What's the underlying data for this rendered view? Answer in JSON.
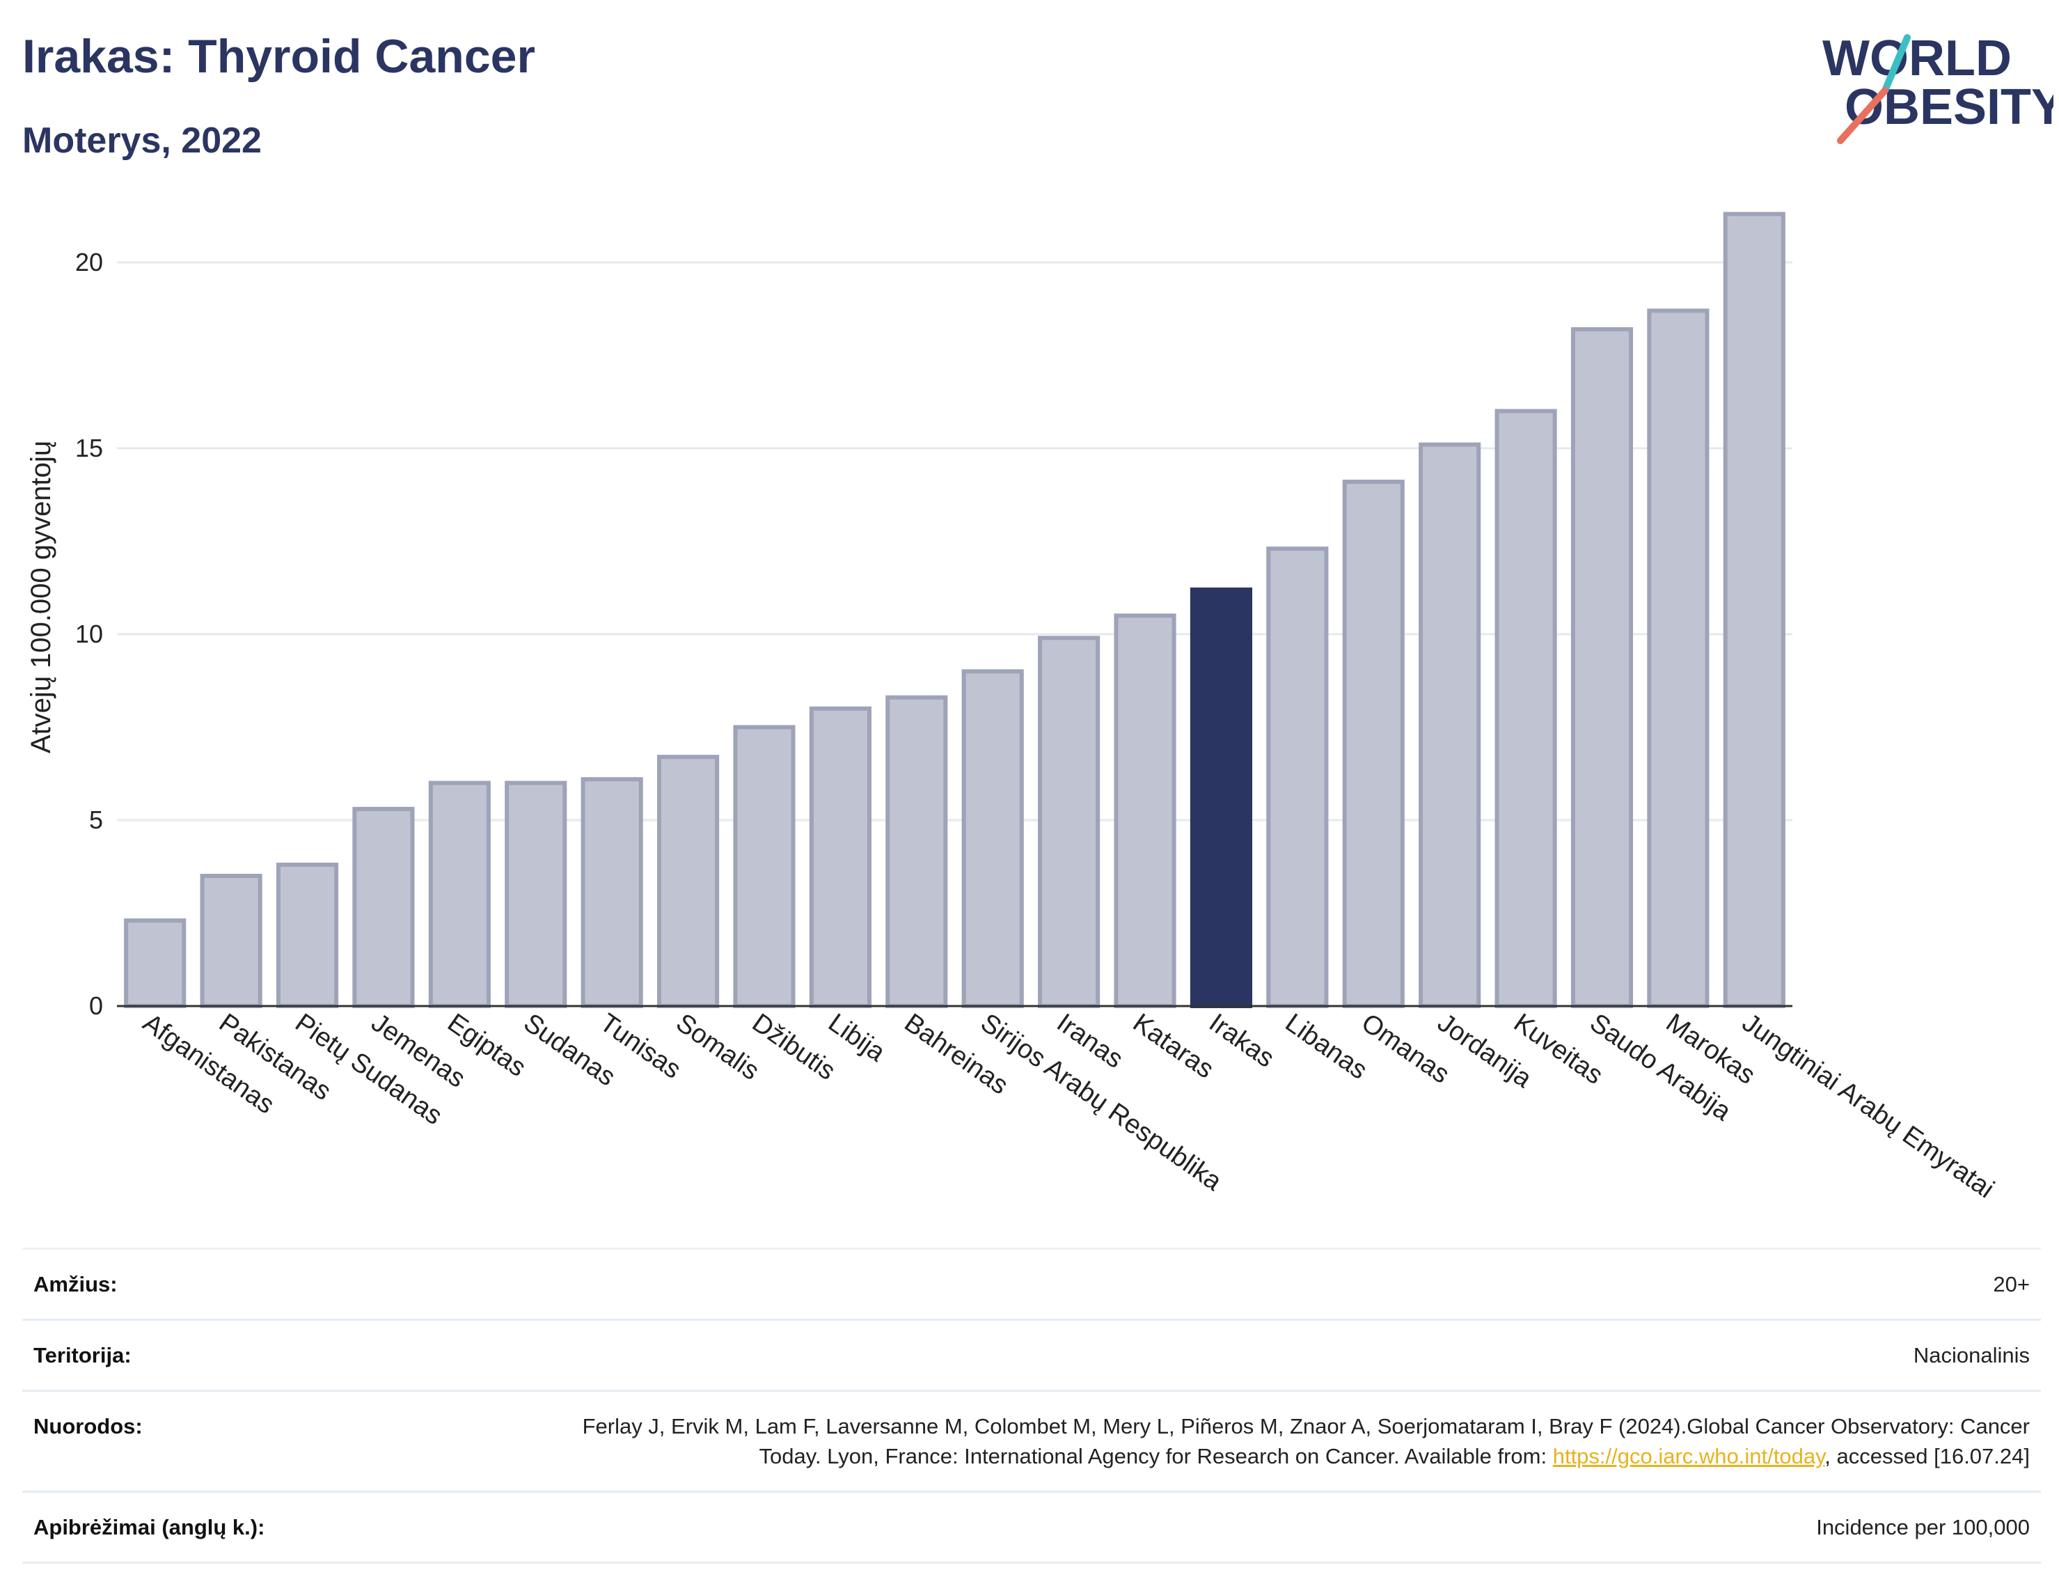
{
  "header": {
    "title": "Irakas: Thyroid Cancer",
    "subtitle": "Moterys, 2022"
  },
  "logo": {
    "line1": "WORLD",
    "line2": "OBESITY"
  },
  "colors": {
    "bar": "#c0c3d1",
    "bar_border": "#9ea3b8",
    "highlight": "#2b3561",
    "accent_teal": "#3bbfc2",
    "accent_coral": "#e8705f"
  },
  "chart_data": {
    "type": "bar",
    "ylabel": "Atvejų 100.000 gyventojų",
    "xlabel": "",
    "ylim": [
      0,
      22
    ],
    "yticks": [
      0,
      5,
      10,
      15,
      20
    ],
    "grid": true,
    "highlight": "Irakas",
    "categories": [
      "Afganistanas",
      "Pakistanas",
      "Pietų Sudanas",
      "Jemenas",
      "Egiptas",
      "Sudanas",
      "Tunisas",
      "Somalis",
      "Džibutis",
      "Libija",
      "Bahreinas",
      "Sirijos Arabų Respublika",
      "Iranas",
      "Kataras",
      "Irakas",
      "Libanas",
      "Omanas",
      "Jordanija",
      "Kuveitas",
      "Saudo Arabija",
      "Marokas",
      "Jungtiniai Arabų Emyratai"
    ],
    "values": [
      2.3,
      3.5,
      3.8,
      5.3,
      6.0,
      6.0,
      6.1,
      6.7,
      7.5,
      8.0,
      8.3,
      9.0,
      9.9,
      10.5,
      11.2,
      12.3,
      14.1,
      15.1,
      16.0,
      18.2,
      18.7,
      21.3
    ]
  },
  "info": {
    "age_label": "Amžius:",
    "age_value": "20+",
    "territory_label": "Teritorija:",
    "territory_value": "Nacionalinis",
    "refs_label": "Nuorodos:",
    "refs_text": "Ferlay J, Ervik M, Lam F, Laversanne M, Colombet M, Mery L, Piñeros M, Znaor A, Soerjomataram I, Bray F (2024).Global Cancer Observatory: Cancer Today. Lyon, France: International Agency for Research on Cancer. Available from: ",
    "refs_link": "https://gco.iarc.who.int/today",
    "refs_suffix": ", accessed [16.07.24]",
    "defs_label": "Apibrėžimai (anglų k.):",
    "defs_value": "Incidence per 100,000"
  }
}
